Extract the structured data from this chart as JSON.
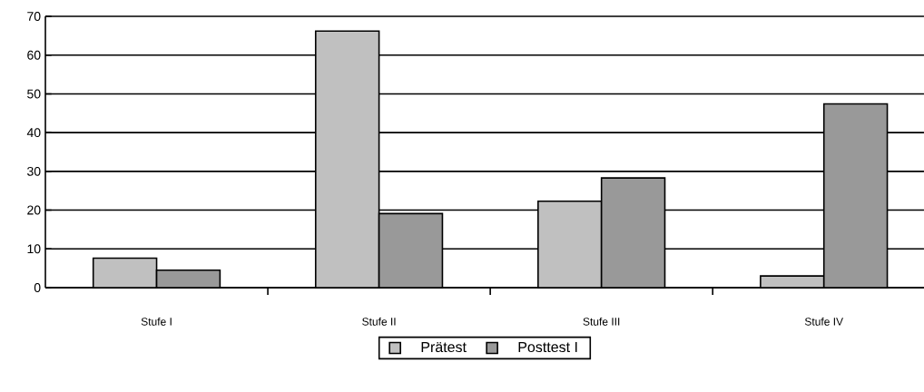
{
  "chart_data": {
    "type": "bar",
    "categories": [
      "Stufe I",
      "Stufe II",
      "Stufe III",
      "Stufe IV"
    ],
    "series": [
      {
        "name": "Prätest",
        "color": "#c0c0c0",
        "values": [
          7.6,
          66.2,
          22.3,
          3.0
        ]
      },
      {
        "name": "Posttest I",
        "color": "#999999",
        "values": [
          4.5,
          19.1,
          28.3,
          47.4
        ]
      }
    ],
    "ylim": [
      0,
      70
    ],
    "yticks": [
      0,
      10,
      20,
      30,
      40,
      50,
      60,
      70
    ],
    "grid": "y",
    "legend": "bottom"
  }
}
